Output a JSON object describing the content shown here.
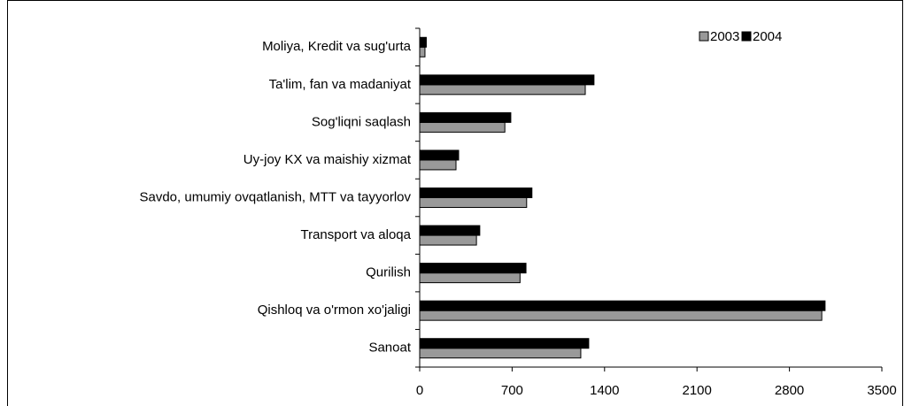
{
  "chart_data": {
    "type": "hbar",
    "categories": [
      "Moliya, Kredit va sug'urta",
      "Ta'lim, fan va madaniyat",
      "Sog'liqni saqlash",
      "Uy-joy KX va maishiy xizmat",
      "Savdo, umumiy ovqatlanish, MTT va tayyorlov",
      "Transport va aloqa",
      "Qurilish",
      "Qishloq va o'rmon xo'jaligi",
      "Sanoat"
    ],
    "series": [
      {
        "name": "2003",
        "color": "#999999",
        "values": [
          40,
          1254,
          645,
          275,
          810,
          430,
          760,
          3045,
          1220
        ]
      },
      {
        "name": "2004",
        "color": "#000000",
        "values": [
          50,
          1320,
          690,
          295,
          850,
          455,
          805,
          3070,
          1280
        ]
      }
    ],
    "xlim": [
      0,
      3500
    ],
    "xticks": [
      0,
      700,
      1400,
      2100,
      2800,
      3500
    ],
    "legend": "top-right"
  }
}
